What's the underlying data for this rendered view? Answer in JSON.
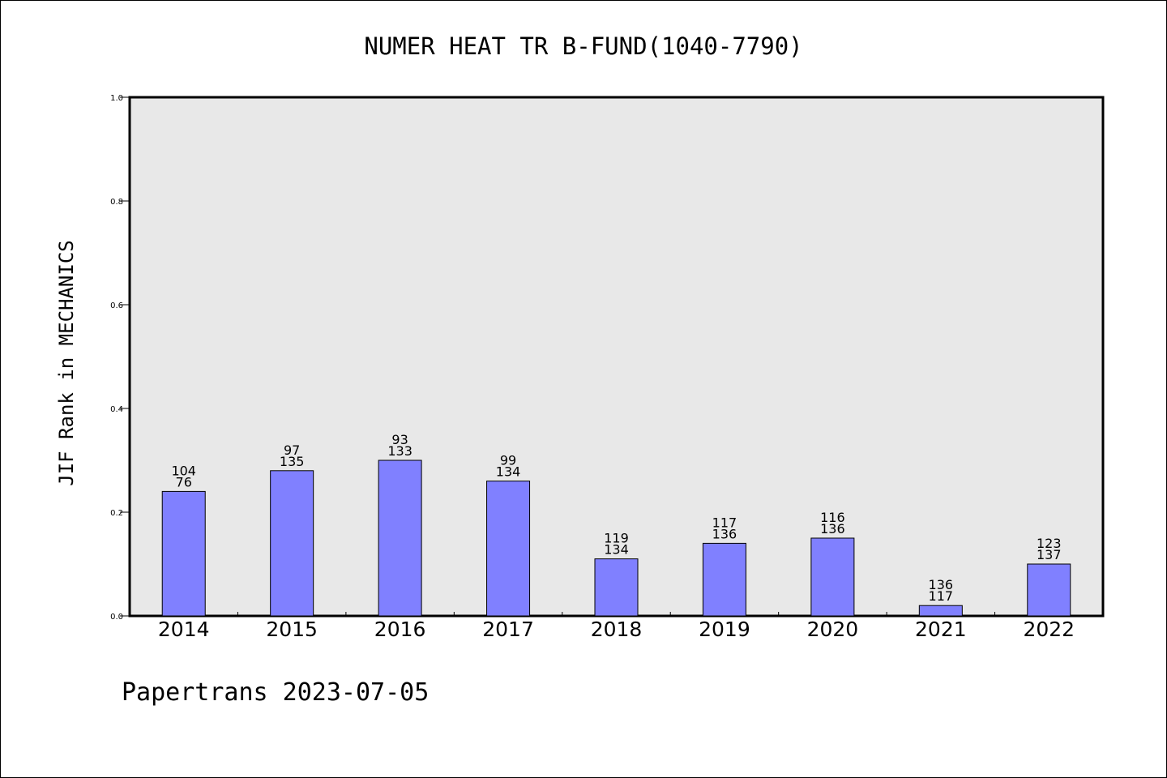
{
  "chart_data": {
    "type": "bar",
    "title": "NUMER HEAT TR B-FUND(1040-7790)",
    "ylabel": "JIF Rank in MECHANICS",
    "xlabel": "",
    "ylim": [
      0,
      1.0
    ],
    "yticks": [
      "0.0",
      "0.2",
      "0.4",
      "0.6",
      "0.8",
      "1.0"
    ],
    "ytick_values": [
      0,
      0.2,
      0.4,
      0.6,
      0.8,
      1.0
    ],
    "categories": [
      "2014",
      "2015",
      "2016",
      "2017",
      "2018",
      "2019",
      "2020",
      "2021",
      "2022"
    ],
    "values": [
      0.24,
      0.28,
      0.3,
      0.26,
      0.11,
      0.14,
      0.15,
      0.02,
      0.1
    ],
    "label_top": [
      "104",
      "97",
      "93",
      "99",
      "119",
      "117",
      "116",
      "136",
      "123"
    ],
    "label_bottom": [
      "76",
      "135",
      "133",
      "134",
      "134",
      "136",
      "136",
      "117",
      "137"
    ],
    "bar_color": "#8080ff",
    "plot_background": "#e8e8e8",
    "grid": false,
    "legend": "none"
  },
  "footer": "Papertrans 2023-07-05"
}
